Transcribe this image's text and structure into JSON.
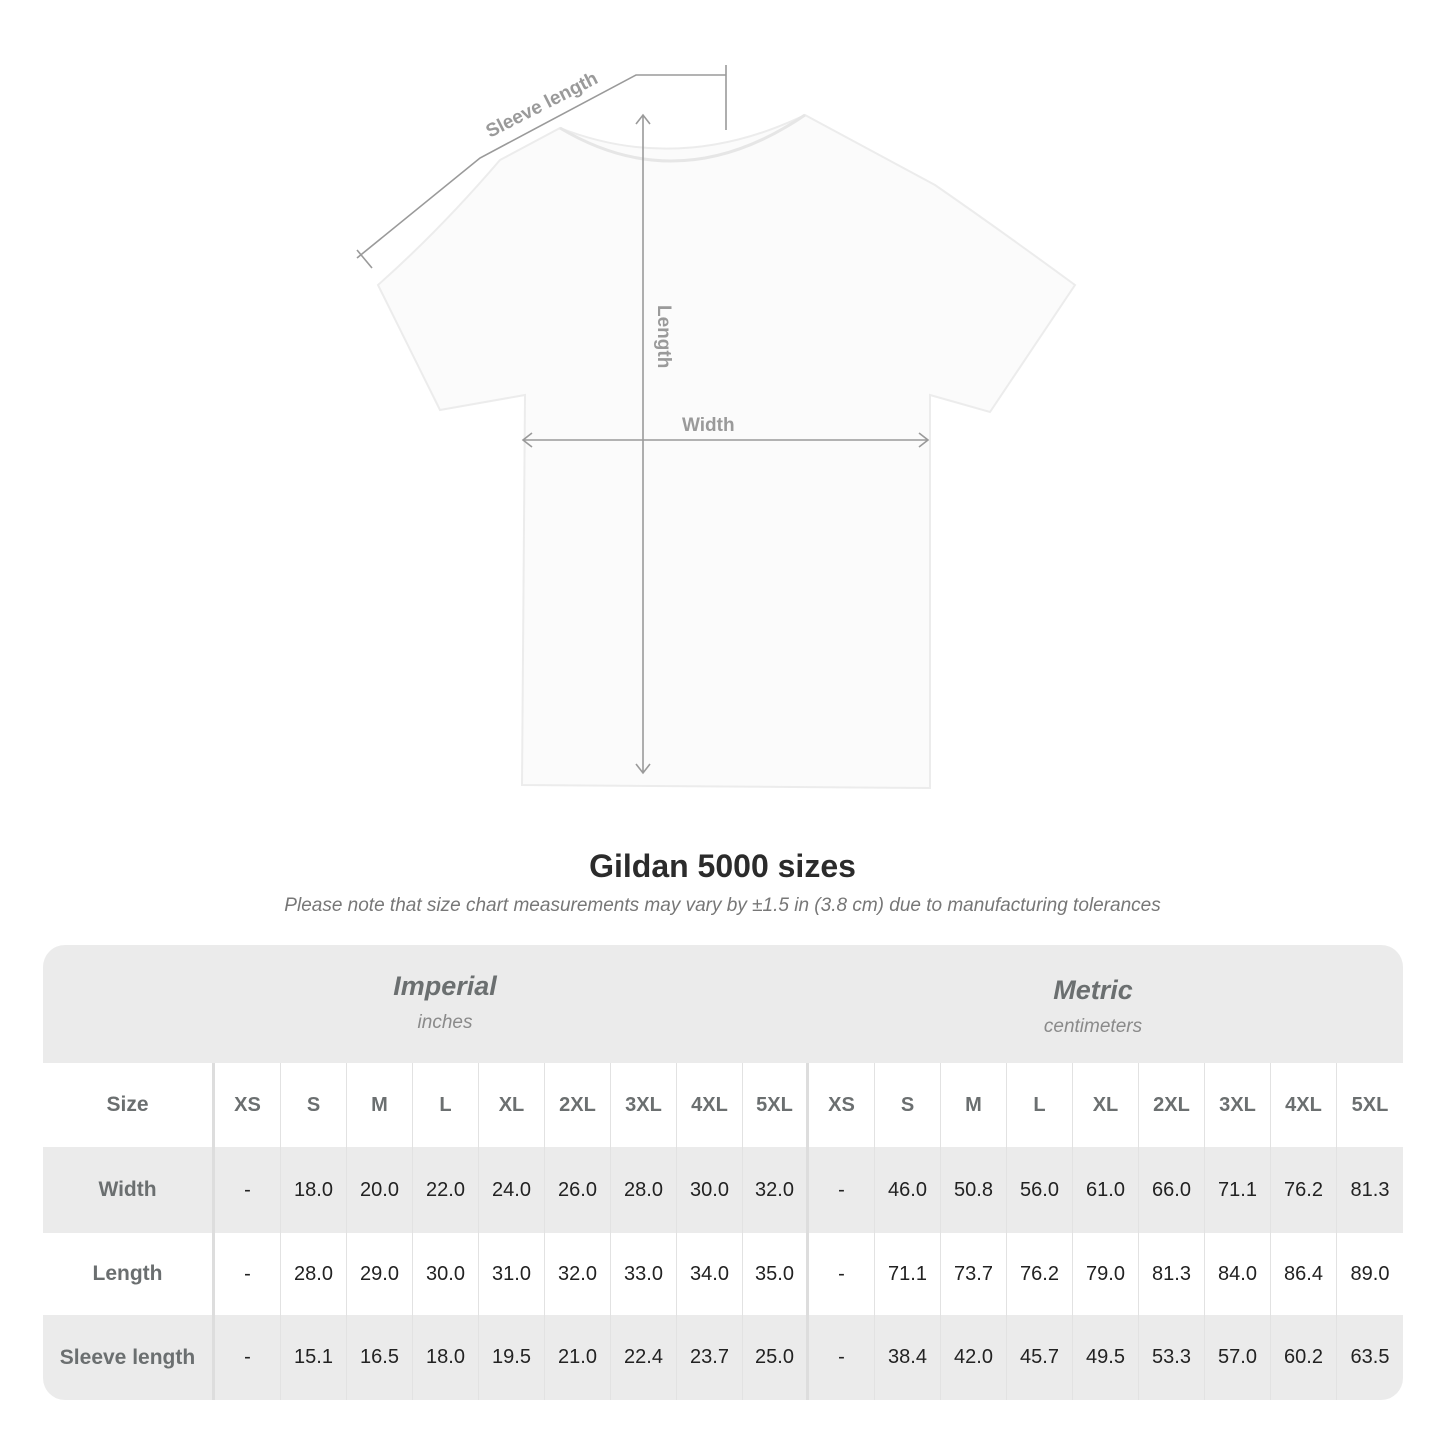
{
  "diagram": {
    "labels": {
      "sleeve": "Sleeve length",
      "length": "Length",
      "width": "Width"
    },
    "line_color": "#9a9a9a"
  },
  "title": "Gildan 5000 sizes",
  "note": "Please note that size chart measurements may vary by ±1.5 in (3.8 cm) due to manufacturing tolerances",
  "table": {
    "imperial": {
      "name": "Imperial",
      "unit": "inches"
    },
    "metric": {
      "name": "Metric",
      "unit": "centimeters"
    },
    "size_label": "Size",
    "sizes": [
      "XS",
      "S",
      "M",
      "L",
      "XL",
      "2XL",
      "3XL",
      "4XL",
      "5XL"
    ],
    "rows": [
      {
        "label": "Width",
        "imperial": [
          "-",
          "18.0",
          "20.0",
          "22.0",
          "24.0",
          "26.0",
          "28.0",
          "30.0",
          "32.0"
        ],
        "metric": [
          "-",
          "46.0",
          "50.8",
          "56.0",
          "61.0",
          "66.0",
          "71.1",
          "76.2",
          "81.3"
        ]
      },
      {
        "label": "Length",
        "imperial": [
          "-",
          "28.0",
          "29.0",
          "30.0",
          "31.0",
          "32.0",
          "33.0",
          "34.0",
          "35.0"
        ],
        "metric": [
          "-",
          "71.1",
          "73.7",
          "76.2",
          "79.0",
          "81.3",
          "84.0",
          "86.4",
          "89.0"
        ]
      },
      {
        "label": "Sleeve length",
        "imperial": [
          "-",
          "15.1",
          "16.5",
          "18.0",
          "19.5",
          "21.0",
          "22.4",
          "23.7",
          "25.0"
        ],
        "metric": [
          "-",
          "38.4",
          "42.0",
          "45.7",
          "49.5",
          "53.3",
          "57.0",
          "60.2",
          "63.5"
        ]
      }
    ]
  }
}
